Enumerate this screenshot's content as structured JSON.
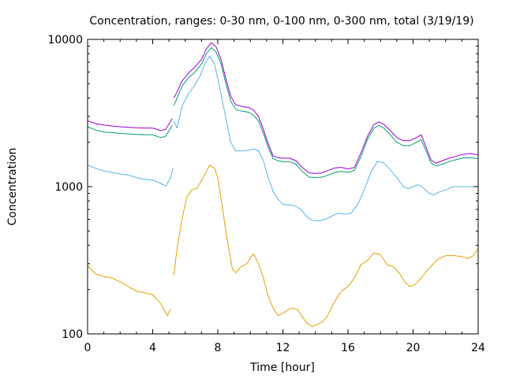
{
  "chart_data": {
    "type": "line",
    "title": "Concentration, ranges: 0-30 nm, 0-100 nm, 0-300 nm, total (3/19/19)",
    "xlabel": "Time [hour]",
    "ylabel": "Concentration",
    "xlim": [
      0,
      24
    ],
    "ylim": [
      100,
      10000
    ],
    "yscale": "log",
    "grid": false,
    "legend": "none",
    "x_ticks": [
      "0",
      "4",
      "8",
      "12",
      "16",
      "20",
      "24"
    ],
    "y_ticks": [
      "100",
      "1000",
      "10000"
    ],
    "series": [
      {
        "color": "#e69f00",
        "segments": [
          [
            [
              0,
              290
            ],
            [
              0.5,
              255
            ],
            [
              1,
              245
            ],
            [
              1.5,
              240
            ],
            [
              2,
              225
            ],
            [
              2.5,
              210
            ],
            [
              3,
              195
            ],
            [
              3.5,
              190
            ],
            [
              4,
              185
            ],
            [
              4.5,
              160
            ],
            [
              4.9,
              133
            ],
            [
              5.1,
              148
            ]
          ],
          [
            [
              5.3,
              250
            ],
            [
              5.5,
              380
            ],
            [
              5.8,
              600
            ],
            [
              6.1,
              850
            ],
            [
              6.4,
              950
            ],
            [
              6.7,
              970
            ],
            [
              7,
              1100
            ],
            [
              7.3,
              1270
            ],
            [
              7.5,
              1400
            ],
            [
              7.8,
              1330
            ],
            [
              8,
              1150
            ],
            [
              8.3,
              700
            ],
            [
              8.6,
              420
            ],
            [
              8.9,
              275
            ],
            [
              9.1,
              260
            ],
            [
              9.4,
              285
            ],
            [
              9.8,
              300
            ],
            [
              10,
              330
            ],
            [
              10.2,
              350
            ],
            [
              10.5,
              300
            ],
            [
              10.8,
              240
            ],
            [
              11.1,
              180
            ],
            [
              11.4,
              150
            ],
            [
              11.7,
              133
            ],
            [
              12,
              138
            ],
            [
              12.3,
              145
            ],
            [
              12.6,
              150
            ],
            [
              12.9,
              146
            ],
            [
              13.2,
              130
            ],
            [
              13.5,
              118
            ],
            [
              13.8,
              112
            ],
            [
              14.1,
              116
            ],
            [
              14.4,
              120
            ],
            [
              14.7,
              130
            ],
            [
              15,
              152
            ],
            [
              15.3,
              175
            ],
            [
              15.6,
              195
            ],
            [
              16,
              210
            ],
            [
              16.4,
              240
            ],
            [
              16.8,
              295
            ],
            [
              17.2,
              315
            ],
            [
              17.6,
              355
            ],
            [
              18,
              345
            ],
            [
              18.4,
              295
            ],
            [
              18.8,
              285
            ],
            [
              19.2,
              255
            ],
            [
              19.5,
              225
            ],
            [
              19.8,
              210
            ],
            [
              20.1,
              215
            ],
            [
              20.5,
              240
            ],
            [
              21,
              280
            ],
            [
              21.5,
              320
            ],
            [
              22,
              340
            ],
            [
              22.5,
              340
            ],
            [
              23,
              335
            ],
            [
              23.4,
              325
            ],
            [
              23.7,
              340
            ],
            [
              24,
              380
            ]
          ]
        ]
      },
      {
        "color": "#56b4e9",
        "segments": [
          [
            [
              0,
              1400
            ],
            [
              0.5,
              1330
            ],
            [
              1,
              1280
            ],
            [
              1.5,
              1250
            ],
            [
              2,
              1220
            ],
            [
              2.5,
              1200
            ],
            [
              3,
              1150
            ],
            [
              3.5,
              1120
            ],
            [
              4,
              1110
            ],
            [
              4.5,
              1050
            ],
            [
              4.8,
              1010
            ],
            [
              5.1,
              1150
            ],
            [
              5.25,
              1330
            ]
          ],
          [
            [
              5.3,
              2800
            ],
            [
              5.5,
              2500
            ],
            [
              5.8,
              3500
            ],
            [
              6.2,
              4300
            ],
            [
              6.6,
              4900
            ],
            [
              6.9,
              5600
            ],
            [
              7.2,
              6800
            ],
            [
              7.5,
              7700
            ],
            [
              7.8,
              6800
            ],
            [
              8.1,
              4800
            ],
            [
              8.5,
              2900
            ],
            [
              8.8,
              2000
            ],
            [
              9.1,
              1750
            ],
            [
              9.4,
              1750
            ],
            [
              9.8,
              1760
            ],
            [
              10.2,
              1800
            ],
            [
              10.5,
              1750
            ],
            [
              10.8,
              1500
            ],
            [
              11.1,
              1150
            ],
            [
              11.4,
              930
            ],
            [
              11.7,
              820
            ],
            [
              12,
              760
            ],
            [
              12.4,
              750
            ],
            [
              12.8,
              740
            ],
            [
              13.1,
              700
            ],
            [
              13.5,
              620
            ],
            [
              13.8,
              590
            ],
            [
              14.2,
              585
            ],
            [
              14.6,
              600
            ],
            [
              15,
              630
            ],
            [
              15.4,
              660
            ],
            [
              15.8,
              650
            ],
            [
              16.2,
              660
            ],
            [
              16.6,
              760
            ],
            [
              17,
              950
            ],
            [
              17.4,
              1250
            ],
            [
              17.8,
              1480
            ],
            [
              18.2,
              1450
            ],
            [
              18.6,
              1300
            ],
            [
              19,
              1150
            ],
            [
              19.4,
              1000
            ],
            [
              19.7,
              970
            ],
            [
              20,
              1000
            ],
            [
              20.3,
              1030
            ],
            [
              20.6,
              990
            ],
            [
              21,
              900
            ],
            [
              21.3,
              880
            ],
            [
              21.6,
              920
            ],
            [
              22,
              950
            ],
            [
              22.5,
              1000
            ],
            [
              23,
              1000
            ],
            [
              23.5,
              1000
            ],
            [
              24,
              1000
            ]
          ]
        ]
      },
      {
        "color": "#009e73",
        "segments": [
          [
            [
              0,
              2550
            ],
            [
              0.5,
              2420
            ],
            [
              1,
              2350
            ],
            [
              1.5,
              2330
            ],
            [
              2,
              2300
            ],
            [
              2.5,
              2280
            ],
            [
              3,
              2260
            ],
            [
              3.5,
              2250
            ],
            [
              4,
              2250
            ],
            [
              4.5,
              2150
            ],
            [
              4.8,
              2200
            ],
            [
              5.2,
              2600
            ]
          ],
          [
            [
              5.3,
              3550
            ],
            [
              5.5,
              4000
            ],
            [
              5.8,
              4800
            ],
            [
              6.2,
              5500
            ],
            [
              6.6,
              6000
            ],
            [
              7,
              6800
            ],
            [
              7.3,
              8000
            ],
            [
              7.6,
              8800
            ],
            [
              7.9,
              8200
            ],
            [
              8.2,
              6800
            ],
            [
              8.5,
              5000
            ],
            [
              8.8,
              3800
            ],
            [
              9.1,
              3350
            ],
            [
              9.5,
              3250
            ],
            [
              9.9,
              3200
            ],
            [
              10.2,
              3050
            ],
            [
              10.5,
              2800
            ],
            [
              10.8,
              2300
            ],
            [
              11.1,
              1850
            ],
            [
              11.4,
              1550
            ],
            [
              11.7,
              1500
            ],
            [
              12,
              1480
            ],
            [
              12.4,
              1480
            ],
            [
              12.8,
              1420
            ],
            [
              13.2,
              1270
            ],
            [
              13.6,
              1160
            ],
            [
              14,
              1150
            ],
            [
              14.4,
              1160
            ],
            [
              14.8,
              1200
            ],
            [
              15.2,
              1250
            ],
            [
              15.6,
              1270
            ],
            [
              16,
              1250
            ],
            [
              16.4,
              1290
            ],
            [
              16.8,
              1600
            ],
            [
              17.2,
              2100
            ],
            [
              17.6,
              2500
            ],
            [
              17.9,
              2600
            ],
            [
              18.2,
              2500
            ],
            [
              18.6,
              2250
            ],
            [
              19,
              2000
            ],
            [
              19.4,
              1900
            ],
            [
              19.8,
              1900
            ],
            [
              20.2,
              2000
            ],
            [
              20.5,
              2080
            ],
            [
              20.8,
              1750
            ],
            [
              21.1,
              1450
            ],
            [
              21.4,
              1380
            ],
            [
              21.8,
              1420
            ],
            [
              22.2,
              1480
            ],
            [
              22.6,
              1520
            ],
            [
              23,
              1560
            ],
            [
              23.5,
              1570
            ],
            [
              24,
              1550
            ]
          ]
        ]
      },
      {
        "color": "#9400d3",
        "segments": [
          [
            [
              0,
              2800
            ],
            [
              0.5,
              2680
            ],
            [
              1,
              2620
            ],
            [
              1.5,
              2580
            ],
            [
              2,
              2550
            ],
            [
              2.5,
              2530
            ],
            [
              3,
              2510
            ],
            [
              3.5,
              2500
            ],
            [
              4,
              2500
            ],
            [
              4.5,
              2400
            ],
            [
              4.8,
              2450
            ],
            [
              5.2,
              2900
            ]
          ],
          [
            [
              5.3,
              4000
            ],
            [
              5.5,
              4400
            ],
            [
              5.8,
              5200
            ],
            [
              6.2,
              5900
            ],
            [
              6.6,
              6500
            ],
            [
              7,
              7300
            ],
            [
              7.3,
              8600
            ],
            [
              7.6,
              9500
            ],
            [
              7.9,
              8900
            ],
            [
              8.2,
              7300
            ],
            [
              8.5,
              5400
            ],
            [
              8.8,
              4100
            ],
            [
              9.1,
              3600
            ],
            [
              9.5,
              3500
            ],
            [
              9.9,
              3450
            ],
            [
              10.2,
              3300
            ],
            [
              10.5,
              3000
            ],
            [
              10.8,
              2450
            ],
            [
              11.1,
              1950
            ],
            [
              11.4,
              1620
            ],
            [
              11.7,
              1570
            ],
            [
              12,
              1560
            ],
            [
              12.4,
              1560
            ],
            [
              12.8,
              1500
            ],
            [
              13.2,
              1350
            ],
            [
              13.6,
              1240
            ],
            [
              14,
              1230
            ],
            [
              14.4,
              1240
            ],
            [
              14.8,
              1290
            ],
            [
              15.2,
              1340
            ],
            [
              15.6,
              1350
            ],
            [
              16,
              1320
            ],
            [
              16.4,
              1350
            ],
            [
              16.8,
              1700
            ],
            [
              17.2,
              2200
            ],
            [
              17.6,
              2650
            ],
            [
              17.9,
              2750
            ],
            [
              18.2,
              2650
            ],
            [
              18.6,
              2400
            ],
            [
              19,
              2150
            ],
            [
              19.4,
              2050
            ],
            [
              19.8,
              2050
            ],
            [
              20.2,
              2150
            ],
            [
              20.5,
              2250
            ],
            [
              20.8,
              1850
            ],
            [
              21.1,
              1520
            ],
            [
              21.4,
              1440
            ],
            [
              21.8,
              1500
            ],
            [
              22.2,
              1560
            ],
            [
              22.6,
              1600
            ],
            [
              23,
              1650
            ],
            [
              23.5,
              1680
            ],
            [
              24,
              1640
            ]
          ]
        ]
      }
    ]
  }
}
